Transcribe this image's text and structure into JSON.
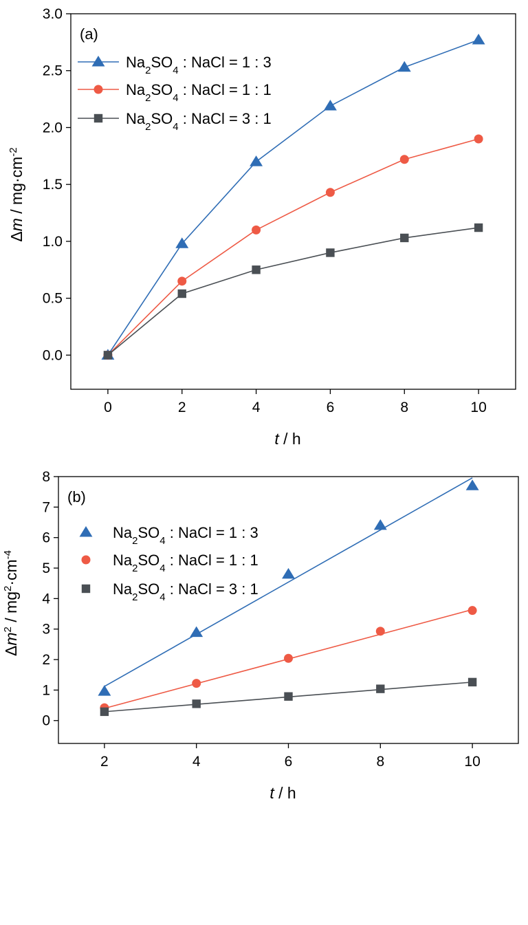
{
  "chart_data": [
    {
      "type": "line",
      "panel_label": "(a)",
      "xlabel": {
        "italic": "t",
        "rest": " / h"
      },
      "ylabel": {
        "prefix": "Δ",
        "italic": "m",
        "rest": " / mg·cm",
        "sup": "-2"
      },
      "xlim": [
        -1,
        11
      ],
      "ylim": [
        -0.3,
        3.0
      ],
      "xticks": [
        0,
        2,
        4,
        6,
        8,
        10
      ],
      "yticks": [
        "0.0",
        "0.5",
        "1.0",
        "1.5",
        "2.0",
        "2.5",
        "3.0"
      ],
      "legend_position": "top-left",
      "grid": false,
      "x": [
        0,
        2,
        4,
        6,
        8,
        10
      ],
      "series": [
        {
          "name": "Na2SO4 : NaCl = 1 : 3",
          "name_parts": [
            "Na",
            "2",
            "SO",
            "4",
            " : NaCl = 1 : 3"
          ],
          "marker": "triangle",
          "color": "#2f6db5",
          "values": [
            0.0,
            0.98,
            1.7,
            2.19,
            2.53,
            2.77
          ]
        },
        {
          "name": "Na2SO4 : NaCl = 1 : 1",
          "name_parts": [
            "Na",
            "2",
            "SO",
            "4",
            " : NaCl = 1 : 1"
          ],
          "marker": "circle",
          "color": "#ee5a45",
          "values": [
            0.0,
            0.65,
            1.1,
            1.43,
            1.72,
            1.9
          ]
        },
        {
          "name": "Na2SO4 : NaCl = 3 : 1",
          "name_parts": [
            "Na",
            "2",
            "SO",
            "4",
            " : NaCl = 3 : 1"
          ],
          "marker": "square",
          "color": "#4a4f54",
          "values": [
            0.0,
            0.54,
            0.75,
            0.9,
            1.03,
            1.12
          ]
        }
      ]
    },
    {
      "type": "scatter",
      "panel_label": "(b)",
      "xlabel": {
        "italic": "t",
        "rest": " / h"
      },
      "ylabel": {
        "prefix": "Δ",
        "italic": "m",
        "sup1": "2",
        "rest": " / mg",
        "sup2": "2",
        "rest2": "·cm",
        "sup3": "-4"
      },
      "xlim": [
        1,
        11
      ],
      "ylim": [
        -0.75,
        8.0
      ],
      "xticks": [
        2,
        4,
        6,
        8,
        10
      ],
      "yticks": [
        "0",
        "1",
        "2",
        "3",
        "4",
        "5",
        "6",
        "7",
        "8"
      ],
      "legend_position": "top-left",
      "grid": false,
      "x": [
        2,
        4,
        6,
        8,
        10
      ],
      "series": [
        {
          "name": "Na2SO4 : NaCl = 1 : 3",
          "name_parts": [
            "Na",
            "2",
            "SO",
            "4",
            " : NaCl = 1 : 3"
          ],
          "marker": "triangle",
          "color": "#2f6db5",
          "values": [
            0.96,
            2.89,
            4.8,
            6.4,
            7.7
          ],
          "fit": [
            1.12,
            7.96
          ]
        },
        {
          "name": "Na2SO4 : NaCl = 1 : 1",
          "name_parts": [
            "Na",
            "2",
            "SO",
            "4",
            " : NaCl = 1 : 1"
          ],
          "marker": "circle",
          "color": "#ee5a45",
          "values": [
            0.42,
            1.22,
            2.04,
            2.93,
            3.61
          ],
          "fit": [
            0.4,
            3.64
          ]
        },
        {
          "name": "Na2SO4 : NaCl = 3 : 1",
          "name_parts": [
            "Na",
            "2",
            "SO",
            "4",
            " : NaCl = 3 : 1"
          ],
          "marker": "square",
          "color": "#4a4f54",
          "values": [
            0.29,
            0.55,
            0.79,
            1.04,
            1.26
          ],
          "fit": [
            0.29,
            1.26
          ]
        }
      ]
    }
  ]
}
